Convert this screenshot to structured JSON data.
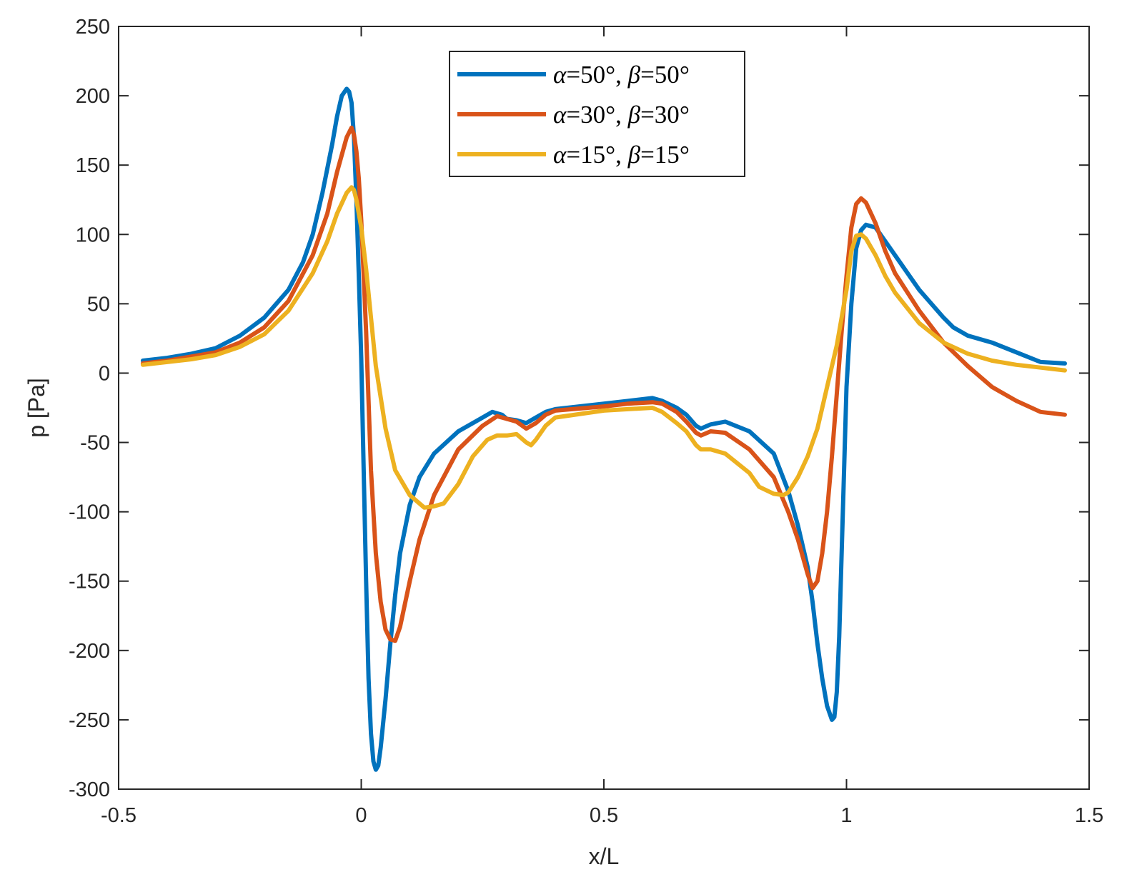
{
  "chart_data": {
    "type": "line",
    "title": "",
    "xlabel": "x/L",
    "ylabel": "p [Pa]",
    "xlim": [
      -0.5,
      1.5
    ],
    "ylim": [
      -300,
      250
    ],
    "xticks": [
      -0.5,
      0,
      0.5,
      1,
      1.5
    ],
    "xtick_labels": [
      "-0.5",
      "0",
      "0.5",
      "1",
      "1.5"
    ],
    "yticks": [
      -300,
      -250,
      -200,
      -150,
      -100,
      -50,
      0,
      50,
      100,
      150,
      200,
      250
    ],
    "ytick_labels": [
      "-300",
      "-250",
      "-200",
      "-150",
      "-100",
      "-50",
      "0",
      "50",
      "100",
      "150",
      "200",
      "250"
    ],
    "grid": false,
    "legend_position": "top-center",
    "series": [
      {
        "name": "α=50°, β=50°",
        "name_parts": [
          "α",
          "=50",
          "°",
          ", ",
          "β",
          "=50",
          "°"
        ],
        "color": "#0072BD",
        "points": [
          [
            -0.45,
            9
          ],
          [
            -0.4,
            11
          ],
          [
            -0.35,
            14
          ],
          [
            -0.3,
            18
          ],
          [
            -0.25,
            27
          ],
          [
            -0.2,
            40
          ],
          [
            -0.15,
            60
          ],
          [
            -0.12,
            80
          ],
          [
            -0.1,
            100
          ],
          [
            -0.08,
            130
          ],
          [
            -0.06,
            165
          ],
          [
            -0.05,
            185
          ],
          [
            -0.04,
            200
          ],
          [
            -0.03,
            205
          ],
          [
            -0.025,
            203
          ],
          [
            -0.02,
            195
          ],
          [
            -0.015,
            170
          ],
          [
            -0.01,
            125
          ],
          [
            -0.005,
            70
          ],
          [
            0,
            10
          ],
          [
            0.005,
            -70
          ],
          [
            0.01,
            -150
          ],
          [
            0.015,
            -220
          ],
          [
            0.02,
            -260
          ],
          [
            0.025,
            -280
          ],
          [
            0.03,
            -286
          ],
          [
            0.035,
            -283
          ],
          [
            0.04,
            -270
          ],
          [
            0.05,
            -235
          ],
          [
            0.06,
            -195
          ],
          [
            0.07,
            -160
          ],
          [
            0.08,
            -130
          ],
          [
            0.1,
            -95
          ],
          [
            0.12,
            -75
          ],
          [
            0.15,
            -58
          ],
          [
            0.2,
            -42
          ],
          [
            0.25,
            -32
          ],
          [
            0.27,
            -28
          ],
          [
            0.29,
            -30
          ],
          [
            0.3,
            -33
          ],
          [
            0.32,
            -34
          ],
          [
            0.34,
            -36
          ],
          [
            0.36,
            -32
          ],
          [
            0.38,
            -28
          ],
          [
            0.4,
            -26
          ],
          [
            0.5,
            -22
          ],
          [
            0.55,
            -20
          ],
          [
            0.6,
            -18
          ],
          [
            0.62,
            -20
          ],
          [
            0.65,
            -25
          ],
          [
            0.67,
            -30
          ],
          [
            0.69,
            -38
          ],
          [
            0.7,
            -40
          ],
          [
            0.72,
            -37
          ],
          [
            0.75,
            -35
          ],
          [
            0.8,
            -42
          ],
          [
            0.85,
            -58
          ],
          [
            0.88,
            -85
          ],
          [
            0.9,
            -110
          ],
          [
            0.92,
            -140
          ],
          [
            0.93,
            -165
          ],
          [
            0.94,
            -195
          ],
          [
            0.95,
            -220
          ],
          [
            0.96,
            -240
          ],
          [
            0.97,
            -250
          ],
          [
            0.975,
            -248
          ],
          [
            0.98,
            -230
          ],
          [
            0.985,
            -190
          ],
          [
            0.99,
            -130
          ],
          [
            0.995,
            -70
          ],
          [
            1,
            -10
          ],
          [
            1.01,
            50
          ],
          [
            1.02,
            90
          ],
          [
            1.03,
            103
          ],
          [
            1.04,
            107
          ],
          [
            1.06,
            105
          ],
          [
            1.08,
            95
          ],
          [
            1.1,
            85
          ],
          [
            1.15,
            60
          ],
          [
            1.2,
            40
          ],
          [
            1.22,
            33
          ],
          [
            1.25,
            27
          ],
          [
            1.3,
            22
          ],
          [
            1.35,
            15
          ],
          [
            1.4,
            8
          ],
          [
            1.45,
            7
          ]
        ]
      },
      {
        "name": "α=30°, β=30°",
        "name_parts": [
          "α",
          "=30",
          "°",
          ", ",
          "β",
          "=30",
          "°"
        ],
        "color": "#D95319",
        "points": [
          [
            -0.45,
            7
          ],
          [
            -0.4,
            9
          ],
          [
            -0.35,
            12
          ],
          [
            -0.3,
            15
          ],
          [
            -0.25,
            22
          ],
          [
            -0.2,
            33
          ],
          [
            -0.15,
            52
          ],
          [
            -0.1,
            85
          ],
          [
            -0.07,
            115
          ],
          [
            -0.05,
            145
          ],
          [
            -0.03,
            170
          ],
          [
            -0.02,
            177
          ],
          [
            -0.015,
            172
          ],
          [
            -0.01,
            160
          ],
          [
            -0.005,
            140
          ],
          [
            0,
            110
          ],
          [
            0.005,
            70
          ],
          [
            0.01,
            30
          ],
          [
            0.015,
            -20
          ],
          [
            0.02,
            -70
          ],
          [
            0.03,
            -130
          ],
          [
            0.04,
            -165
          ],
          [
            0.05,
            -185
          ],
          [
            0.06,
            -192
          ],
          [
            0.07,
            -193
          ],
          [
            0.08,
            -183
          ],
          [
            0.1,
            -150
          ],
          [
            0.12,
            -120
          ],
          [
            0.15,
            -88
          ],
          [
            0.2,
            -55
          ],
          [
            0.25,
            -38
          ],
          [
            0.28,
            -31
          ],
          [
            0.3,
            -33
          ],
          [
            0.32,
            -35
          ],
          [
            0.34,
            -40
          ],
          [
            0.36,
            -36
          ],
          [
            0.38,
            -30
          ],
          [
            0.4,
            -27
          ],
          [
            0.5,
            -24
          ],
          [
            0.55,
            -22
          ],
          [
            0.6,
            -21
          ],
          [
            0.62,
            -22
          ],
          [
            0.65,
            -28
          ],
          [
            0.67,
            -35
          ],
          [
            0.69,
            -43
          ],
          [
            0.7,
            -45
          ],
          [
            0.72,
            -42
          ],
          [
            0.75,
            -43
          ],
          [
            0.8,
            -55
          ],
          [
            0.85,
            -75
          ],
          [
            0.88,
            -100
          ],
          [
            0.9,
            -120
          ],
          [
            0.92,
            -145
          ],
          [
            0.93,
            -155
          ],
          [
            0.94,
            -150
          ],
          [
            0.95,
            -130
          ],
          [
            0.96,
            -100
          ],
          [
            0.97,
            -60
          ],
          [
            0.98,
            -15
          ],
          [
            0.99,
            30
          ],
          [
            1,
            70
          ],
          [
            1.01,
            105
          ],
          [
            1.02,
            122
          ],
          [
            1.03,
            126
          ],
          [
            1.04,
            123
          ],
          [
            1.06,
            108
          ],
          [
            1.08,
            88
          ],
          [
            1.1,
            72
          ],
          [
            1.15,
            45
          ],
          [
            1.2,
            22
          ],
          [
            1.25,
            5
          ],
          [
            1.3,
            -10
          ],
          [
            1.35,
            -20
          ],
          [
            1.4,
            -28
          ],
          [
            1.45,
            -30
          ]
        ]
      },
      {
        "name": "α=15°, β=15°",
        "name_parts": [
          "α",
          "=15",
          "°",
          ", ",
          "β",
          "=15",
          "°"
        ],
        "color": "#EDB120",
        "points": [
          [
            -0.45,
            6
          ],
          [
            -0.4,
            8
          ],
          [
            -0.35,
            10
          ],
          [
            -0.3,
            13
          ],
          [
            -0.25,
            19
          ],
          [
            -0.2,
            28
          ],
          [
            -0.15,
            45
          ],
          [
            -0.1,
            72
          ],
          [
            -0.07,
            95
          ],
          [
            -0.05,
            115
          ],
          [
            -0.03,
            130
          ],
          [
            -0.02,
            134
          ],
          [
            -0.015,
            132
          ],
          [
            -0.01,
            125
          ],
          [
            0,
            105
          ],
          [
            0.01,
            75
          ],
          [
            0.02,
            40
          ],
          [
            0.03,
            5
          ],
          [
            0.05,
            -40
          ],
          [
            0.07,
            -70
          ],
          [
            0.1,
            -88
          ],
          [
            0.13,
            -97
          ],
          [
            0.15,
            -96
          ],
          [
            0.17,
            -94
          ],
          [
            0.2,
            -80
          ],
          [
            0.23,
            -60
          ],
          [
            0.26,
            -48
          ],
          [
            0.28,
            -45
          ],
          [
            0.3,
            -45
          ],
          [
            0.32,
            -44
          ],
          [
            0.34,
            -50
          ],
          [
            0.35,
            -52
          ],
          [
            0.36,
            -48
          ],
          [
            0.38,
            -38
          ],
          [
            0.4,
            -32
          ],
          [
            0.5,
            -27
          ],
          [
            0.55,
            -26
          ],
          [
            0.6,
            -25
          ],
          [
            0.62,
            -28
          ],
          [
            0.65,
            -36
          ],
          [
            0.67,
            -42
          ],
          [
            0.69,
            -52
          ],
          [
            0.7,
            -55
          ],
          [
            0.72,
            -55
          ],
          [
            0.75,
            -58
          ],
          [
            0.8,
            -72
          ],
          [
            0.82,
            -82
          ],
          [
            0.85,
            -87
          ],
          [
            0.87,
            -88
          ],
          [
            0.88,
            -86
          ],
          [
            0.9,
            -75
          ],
          [
            0.92,
            -60
          ],
          [
            0.94,
            -40
          ],
          [
            0.96,
            -10
          ],
          [
            0.98,
            20
          ],
          [
            1,
            60
          ],
          [
            1.01,
            88
          ],
          [
            1.02,
            99
          ],
          [
            1.03,
            100
          ],
          [
            1.04,
            97
          ],
          [
            1.06,
            85
          ],
          [
            1.08,
            70
          ],
          [
            1.1,
            58
          ],
          [
            1.15,
            36
          ],
          [
            1.2,
            22
          ],
          [
            1.25,
            14
          ],
          [
            1.3,
            9
          ],
          [
            1.35,
            6
          ],
          [
            1.4,
            4
          ],
          [
            1.45,
            2
          ]
        ]
      }
    ]
  }
}
